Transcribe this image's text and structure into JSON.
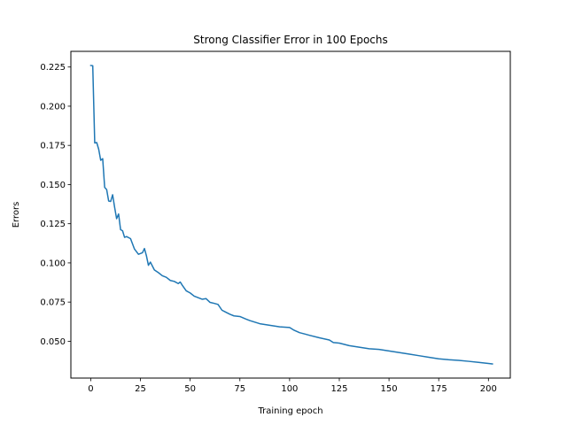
{
  "chart_data": {
    "type": "line",
    "title": "Strong Classifier Error in 100 Epochs",
    "xlabel": "Training epoch",
    "ylabel": "Errors",
    "xlim": [
      -10,
      211
    ],
    "ylim": [
      0.0265,
      0.235
    ],
    "grid": false,
    "xticks": [
      0,
      25,
      50,
      75,
      100,
      125,
      150,
      175,
      200
    ],
    "xtick_labels": [
      "0",
      "25",
      "50",
      "75",
      "100",
      "125",
      "150",
      "175",
      "200"
    ],
    "yticks": [
      0.05,
      0.075,
      0.1,
      0.125,
      0.15,
      0.175,
      0.2,
      0.225
    ],
    "ytick_labels": [
      "0.050",
      "0.075",
      "0.100",
      "0.125",
      "0.150",
      "0.175",
      "0.200",
      "0.225"
    ],
    "colors": {
      "series": "#1f77b4",
      "axes": "#000000",
      "background": "#ffffff"
    },
    "series": [
      {
        "x": [
          0,
          1,
          2,
          3,
          4,
          5,
          6,
          7,
          8,
          9,
          10,
          11,
          12,
          13,
          14,
          15,
          16,
          17,
          18,
          20,
          22,
          24,
          26,
          27,
          28,
          29,
          30,
          32,
          34,
          36,
          38,
          40,
          42,
          44,
          45,
          46,
          48,
          50,
          52,
          54,
          56,
          58,
          60,
          62,
          64,
          66,
          68,
          70,
          72,
          75,
          78,
          80,
          85,
          90,
          95,
          100,
          102,
          105,
          108,
          110,
          115,
          120,
          122,
          125,
          130,
          135,
          140,
          145,
          150,
          155,
          160,
          165,
          170,
          175,
          180,
          185,
          190,
          195,
          200,
          202
        ],
        "y": [
          0.226,
          0.2258,
          0.1765,
          0.1768,
          0.1725,
          0.1655,
          0.1665,
          0.1482,
          0.1468,
          0.1395,
          0.1392,
          0.1435,
          0.1355,
          0.1282,
          0.1312,
          0.1212,
          0.1205,
          0.1163,
          0.1168,
          0.1155,
          0.1088,
          0.1055,
          0.1065,
          0.1092,
          0.1045,
          0.0985,
          0.1005,
          0.0955,
          0.0938,
          0.0918,
          0.0908,
          0.0888,
          0.0882,
          0.0868,
          0.0878,
          0.0858,
          0.0822,
          0.0808,
          0.0788,
          0.0778,
          0.0768,
          0.0772,
          0.0748,
          0.0742,
          0.0735,
          0.0698,
          0.0685,
          0.0672,
          0.0662,
          0.0658,
          0.0642,
          0.0632,
          0.0612,
          0.0602,
          0.0592,
          0.0588,
          0.0572,
          0.0555,
          0.0545,
          0.0538,
          0.0522,
          0.0508,
          0.0492,
          0.0488,
          0.0472,
          0.0462,
          0.0452,
          0.0448,
          0.0438,
          0.0428,
          0.0418,
          0.0408,
          0.0398,
          0.0388,
          0.0382,
          0.0378,
          0.0372,
          0.0365,
          0.0358,
          0.0355
        ]
      }
    ]
  }
}
